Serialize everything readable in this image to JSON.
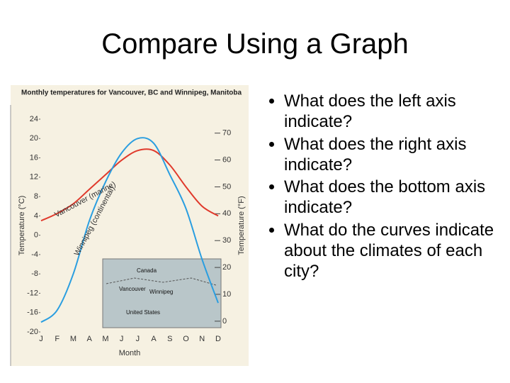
{
  "slide_title": "Compare Using a Graph",
  "bullets": [
    "What does the left axis indicate?",
    "What does the right axis indicate?",
    "What does the bottom axis indicate?",
    "What do the curves indicate about the climates of each city?"
  ],
  "map": {
    "labels": [
      "Canada",
      "Vancouver",
      "Winnipeg",
      "United States"
    ]
  },
  "chart_data": {
    "type": "line",
    "title": "Monthly temperatures for Vancouver, BC and Winnipeg, Manitoba",
    "x_label": "Month",
    "y_label": "Temperature (°C)",
    "y2_label": "Temperature (°F)",
    "categories": [
      "J",
      "F",
      "M",
      "A",
      "M",
      "J",
      "J",
      "A",
      "S",
      "O",
      "N",
      "D"
    ],
    "series": [
      {
        "name": "Vancouver (marine)",
        "color": "#e03a2c",
        "values": [
          3,
          4.5,
          6.5,
          9.5,
          12.5,
          15.5,
          17.5,
          17.5,
          14.5,
          10,
          6,
          4
        ]
      },
      {
        "name": "Winnipeg (continental)",
        "color": "#2a9ee0",
        "values": [
          -18,
          -15.5,
          -8,
          3,
          11,
          17,
          20,
          19,
          12.5,
          5.5,
          -5,
          -14
        ]
      }
    ],
    "ylim": [
      -20,
      24
    ],
    "yticks": [
      -20,
      -16,
      -12,
      -8,
      -4,
      0,
      4,
      8,
      12,
      16,
      20,
      24
    ],
    "y2lim": [
      -4,
      75.2
    ],
    "y2ticks": [
      0,
      10,
      20,
      30,
      40,
      50,
      60,
      70
    ]
  }
}
